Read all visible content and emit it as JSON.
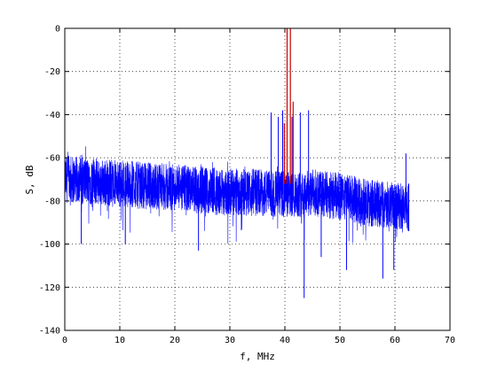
{
  "chart_data": {
    "type": "line",
    "title": "",
    "xlabel": "f, MHz",
    "ylabel": "S, dB",
    "xlim": [
      0,
      70
    ],
    "ylim": [
      -140,
      0
    ],
    "x_ticks": [
      0,
      10,
      20,
      30,
      40,
      50,
      60,
      70
    ],
    "y_ticks": [
      0,
      -20,
      -40,
      -60,
      -80,
      -100,
      -120,
      -140
    ],
    "grid": true,
    "grid_style": "dotted",
    "legend": "none",
    "series": [
      {
        "color": "#0000ff",
        "description_points": [
          [
            0.5,
            -70
          ],
          [
            5,
            -71
          ],
          [
            10,
            -72
          ],
          [
            15,
            -73
          ],
          [
            20,
            -74
          ],
          [
            25,
            -75
          ],
          [
            30,
            -76
          ],
          [
            35,
            -76
          ],
          [
            40,
            -77
          ],
          [
            45,
            -76
          ],
          [
            50,
            -78
          ],
          [
            52,
            -79
          ],
          [
            55,
            -81
          ],
          [
            60,
            -82
          ],
          [
            62.5,
            -83
          ]
        ],
        "noise_spread_db": 11,
        "peaks": [
          {
            "x": 37.5,
            "y": -39
          },
          {
            "x": 38.8,
            "y": -41
          },
          {
            "x": 39.6,
            "y": -38
          },
          {
            "x": 41.3,
            "y": -41
          },
          {
            "x": 42.8,
            "y": -39
          },
          {
            "x": 44.3,
            "y": -38
          },
          {
            "x": 62.0,
            "y": -58
          }
        ],
        "dips": [
          {
            "x": 43.5,
            "y": -125
          },
          {
            "x": 57.8,
            "y": -116
          },
          {
            "x": 46.6,
            "y": -106
          },
          {
            "x": 51.2,
            "y": -112
          },
          {
            "x": 59.8,
            "y": -112
          },
          {
            "x": 3.0,
            "y": -100
          },
          {
            "x": 11.0,
            "y": -100
          },
          {
            "x": 24.3,
            "y": -103
          }
        ],
        "x_end": 62.5
      },
      {
        "color": "#cc0000",
        "peaks": [
          {
            "x": 40.4,
            "y": 0
          },
          {
            "x": 41.0,
            "y": 0
          },
          {
            "x": 41.5,
            "y": -34
          },
          {
            "x": 39.9,
            "y": -44
          }
        ]
      }
    ]
  }
}
